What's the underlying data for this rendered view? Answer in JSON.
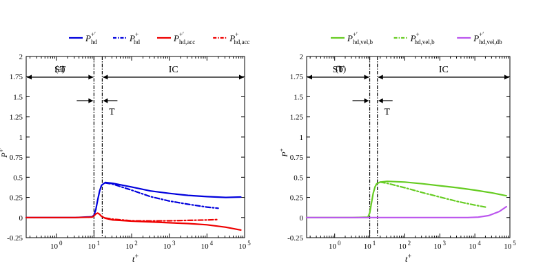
{
  "figure": {
    "xlabel_main": "t",
    "xlabel_sup": "+"
  },
  "chart_data": [
    {
      "type": "line",
      "panel": "(a)",
      "xscale": "log",
      "xlim_log10": [
        -0.8,
        5.0
      ],
      "ylim": [
        -0.25,
        2.0
      ],
      "yticks": [
        "-0.25",
        "0",
        "0.25",
        "0.5",
        "0.75",
        "1",
        "1.25",
        "1.5",
        "1.75",
        "2"
      ],
      "ylabel_main": "P",
      "ylabel_sup": "+′",
      "xtick_bases": [
        "10",
        "10",
        "10",
        "10",
        "10",
        "10"
      ],
      "xtick_exponents": [
        "0",
        "1",
        "2",
        "3",
        "4",
        "5"
      ],
      "xtick_log10": [
        0,
        1,
        2,
        3,
        4,
        5
      ],
      "regions": [
        {
          "label": "ST",
          "from_log10": -0.8,
          "to_log10": 1.0
        },
        {
          "label": "IC",
          "from_log10": 1.22,
          "to_log10": 5.0
        }
      ],
      "transition_label": "T",
      "transition_bounds_log10": [
        1.0,
        1.22
      ],
      "legend_position": "top-left",
      "series": [
        {
          "name": "P",
          "sup": "+′",
          "sub": "hd",
          "color": "#0000dd",
          "style": "solid",
          "x_log10": [
            -0.8,
            0.5,
            0.95,
            1.0,
            1.05,
            1.1,
            1.15,
            1.2,
            1.3,
            1.5,
            2.0,
            2.5,
            3.0,
            3.5,
            4.0,
            4.5,
            4.9
          ],
          "values": [
            0.0,
            0.0,
            0.01,
            0.03,
            0.1,
            0.22,
            0.33,
            0.4,
            0.435,
            0.425,
            0.38,
            0.33,
            0.3,
            0.275,
            0.26,
            0.25,
            0.255
          ]
        },
        {
          "name": "P",
          "sup": "+",
          "sub": "hd",
          "color": "#0000dd",
          "style": "dashdot",
          "x_log10": [
            1.3,
            1.5,
            2.0,
            2.5,
            3.0,
            3.5,
            4.0,
            4.3
          ],
          "values": [
            0.43,
            0.415,
            0.34,
            0.26,
            0.205,
            0.165,
            0.13,
            0.115
          ]
        },
        {
          "name": "P",
          "sup": "+′",
          "sub": "hd,acc",
          "color": "#ee0000",
          "style": "solid",
          "x_log10": [
            -0.8,
            0.5,
            0.95,
            1.0,
            1.05,
            1.1,
            1.15,
            1.2,
            1.3,
            1.5,
            2.0,
            2.5,
            3.0,
            3.5,
            4.0,
            4.5,
            4.9
          ],
          "values": [
            0.0,
            0.0,
            0.005,
            0.02,
            0.045,
            0.055,
            0.04,
            0.015,
            -0.01,
            -0.03,
            -0.045,
            -0.055,
            -0.065,
            -0.075,
            -0.09,
            -0.12,
            -0.155
          ]
        },
        {
          "name": "P",
          "sup": "+",
          "sub": "hd,acc",
          "color": "#ee0000",
          "style": "dashdot",
          "x_log10": [
            1.3,
            1.5,
            2.0,
            2.5,
            3.0,
            3.5,
            4.0,
            4.3
          ],
          "values": [
            -0.005,
            -0.02,
            -0.04,
            -0.042,
            -0.04,
            -0.035,
            -0.03,
            -0.025
          ]
        }
      ]
    },
    {
      "type": "line",
      "panel": "(b)",
      "xscale": "log",
      "xlim_log10": [
        -0.8,
        5.0
      ],
      "ylim": [
        -0.25,
        2.0
      ],
      "yticks": [
        "-0.25",
        "0",
        "0.25",
        "0.5",
        "0.75",
        "1",
        "1.25",
        "1.5",
        "1.75",
        "2"
      ],
      "ylabel_main": "P",
      "ylabel_sup": "+",
      "xtick_bases": [
        "10",
        "10",
        "10",
        "10",
        "10",
        "10"
      ],
      "xtick_exponents": [
        "0",
        "1",
        "2",
        "3",
        "4",
        "5"
      ],
      "xtick_log10": [
        0,
        1,
        2,
        3,
        4,
        5
      ],
      "regions": [
        {
          "label": "ST",
          "from_log10": -0.8,
          "to_log10": 1.0
        },
        {
          "label": "IC",
          "from_log10": 1.22,
          "to_log10": 5.0
        }
      ],
      "transition_label": "T",
      "transition_bounds_log10": [
        1.0,
        1.22
      ],
      "legend_position": "top-right",
      "series": [
        {
          "name": "P",
          "sup": "+′",
          "sub": "hd,vel,b",
          "color": "#66cc22",
          "style": "solid",
          "x_log10": [
            -0.8,
            0.5,
            0.95,
            1.0,
            1.05,
            1.1,
            1.15,
            1.2,
            1.3,
            1.5,
            2.0,
            2.5,
            3.0,
            3.5,
            4.0,
            4.5,
            4.9
          ],
          "values": [
            0.0,
            0.0,
            0.005,
            0.06,
            0.18,
            0.3,
            0.38,
            0.42,
            0.44,
            0.45,
            0.44,
            0.42,
            0.395,
            0.37,
            0.34,
            0.305,
            0.27
          ]
        },
        {
          "name": "P",
          "sup": "+",
          "sub": "hd,vel,b",
          "color": "#66cc22",
          "style": "dashdot",
          "x_log10": [
            1.3,
            1.5,
            2.0,
            2.5,
            3.0,
            3.5,
            4.0,
            4.3
          ],
          "values": [
            0.44,
            0.425,
            0.37,
            0.31,
            0.255,
            0.2,
            0.155,
            0.13
          ]
        },
        {
          "name": "P",
          "sup": "+′",
          "sub": "hd,vel,db",
          "color": "#bb55ee",
          "style": "solid",
          "x_log10": [
            -0.8,
            1.0,
            2.0,
            3.0,
            3.8,
            4.1,
            4.4,
            4.7,
            4.9
          ],
          "values": [
            0.0,
            0.0,
            0.0,
            0.0,
            0.0,
            0.005,
            0.025,
            0.075,
            0.135
          ]
        }
      ]
    }
  ]
}
